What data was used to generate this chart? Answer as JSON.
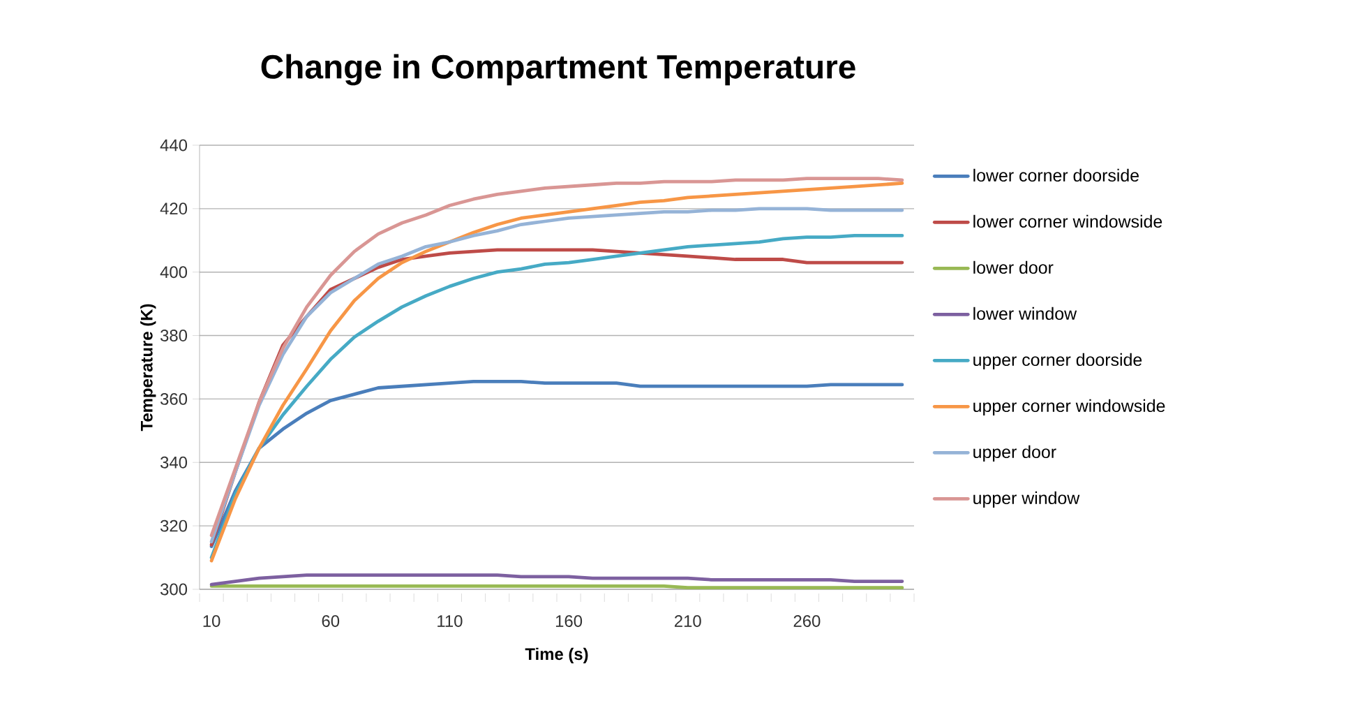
{
  "chart_data": {
    "type": "line",
    "title": "Change in Compartment Temperature",
    "xlabel": "Time (s)",
    "ylabel": "Temperature (K)",
    "categories": [
      "10",
      null,
      null,
      null,
      null,
      "60",
      null,
      null,
      null,
      null,
      "110",
      null,
      null,
      null,
      null,
      "160",
      null,
      null,
      null,
      null,
      "210",
      null,
      null,
      null,
      null,
      "260",
      null,
      null,
      null,
      null
    ],
    "ylim": [
      300,
      440
    ],
    "yticks": [
      300,
      320,
      340,
      360,
      380,
      400,
      420,
      440
    ],
    "grid": "y",
    "legend": "right",
    "series": [
      {
        "name": "lower corner doorside",
        "color": "#4a7ebb",
        "values": [
          313.5,
          331,
          344.5,
          350.5,
          355.5,
          359.5,
          361.5,
          363.5,
          364,
          364.5,
          365,
          365.5,
          365.5,
          365.5,
          365,
          365,
          365,
          365,
          364,
          364,
          364,
          364,
          364,
          364,
          364,
          364,
          364.5,
          364.5,
          364.5,
          364.5
        ]
      },
      {
        "name": "lower corner windowside",
        "color": "#be4b48",
        "values": [
          314,
          337,
          359,
          377,
          386,
          394.5,
          398,
          401.5,
          404,
          405,
          406,
          406.5,
          407,
          407,
          407,
          407,
          407,
          406.5,
          406,
          405.5,
          405,
          404.5,
          404,
          404,
          404,
          403,
          403,
          403,
          403,
          403
        ]
      },
      {
        "name": "lower door",
        "color": "#98b954",
        "values": [
          301,
          301,
          301,
          301,
          301,
          301,
          301,
          301,
          301,
          301,
          301,
          301,
          301,
          301,
          301,
          301,
          301,
          301,
          301,
          301,
          300.5,
          300.5,
          300.5,
          300.5,
          300.5,
          300.5,
          300.5,
          300.5,
          300.5,
          300.5
        ]
      },
      {
        "name": "lower window",
        "color": "#7d60a0",
        "values": [
          301.5,
          302.5,
          303.5,
          304,
          304.5,
          304.5,
          304.5,
          304.5,
          304.5,
          304.5,
          304.5,
          304.5,
          304.5,
          304,
          304,
          304,
          303.5,
          303.5,
          303.5,
          303.5,
          303.5,
          303,
          303,
          303,
          303,
          303,
          303,
          302.5,
          302.5,
          302.5
        ]
      },
      {
        "name": "upper corner doorside",
        "color": "#46aac5",
        "values": [
          310,
          330,
          344.5,
          355,
          364,
          372.5,
          379.5,
          384.5,
          389,
          392.5,
          395.5,
          398,
          400,
          401,
          402.5,
          403,
          404,
          405,
          406,
          407,
          408,
          408.5,
          409,
          409.5,
          410.5,
          411,
          411,
          411.5,
          411.5,
          411.5
        ]
      },
      {
        "name": "upper corner windowside",
        "color": "#f79646",
        "values": [
          309,
          328.5,
          344.5,
          358,
          369.5,
          381.5,
          391,
          398,
          403,
          406.5,
          409.5,
          412.5,
          415,
          417,
          418,
          419,
          420,
          421,
          422,
          422.5,
          423.5,
          424,
          424.5,
          425,
          425.5,
          426,
          426.5,
          427,
          427.5,
          428
        ]
      },
      {
        "name": "upper door",
        "color": "#95b3d7",
        "values": [
          315,
          337,
          358,
          374,
          386,
          393.5,
          398,
          402.5,
          405,
          408,
          409.5,
          411.5,
          413,
          415,
          416,
          417,
          417.5,
          418,
          418.5,
          419,
          419,
          419.5,
          419.5,
          420,
          420,
          420,
          419.5,
          419.5,
          419.5,
          419.5
        ]
      },
      {
        "name": "upper window",
        "color": "#d99694",
        "values": [
          317,
          338,
          359,
          376,
          389,
          399,
          406.5,
          412,
          415.5,
          418,
          421,
          423,
          424.5,
          425.5,
          426.5,
          427,
          427.5,
          428,
          428,
          428.5,
          428.5,
          428.5,
          429,
          429,
          429,
          429.5,
          429.5,
          429.5,
          429.5,
          429
        ]
      }
    ]
  }
}
